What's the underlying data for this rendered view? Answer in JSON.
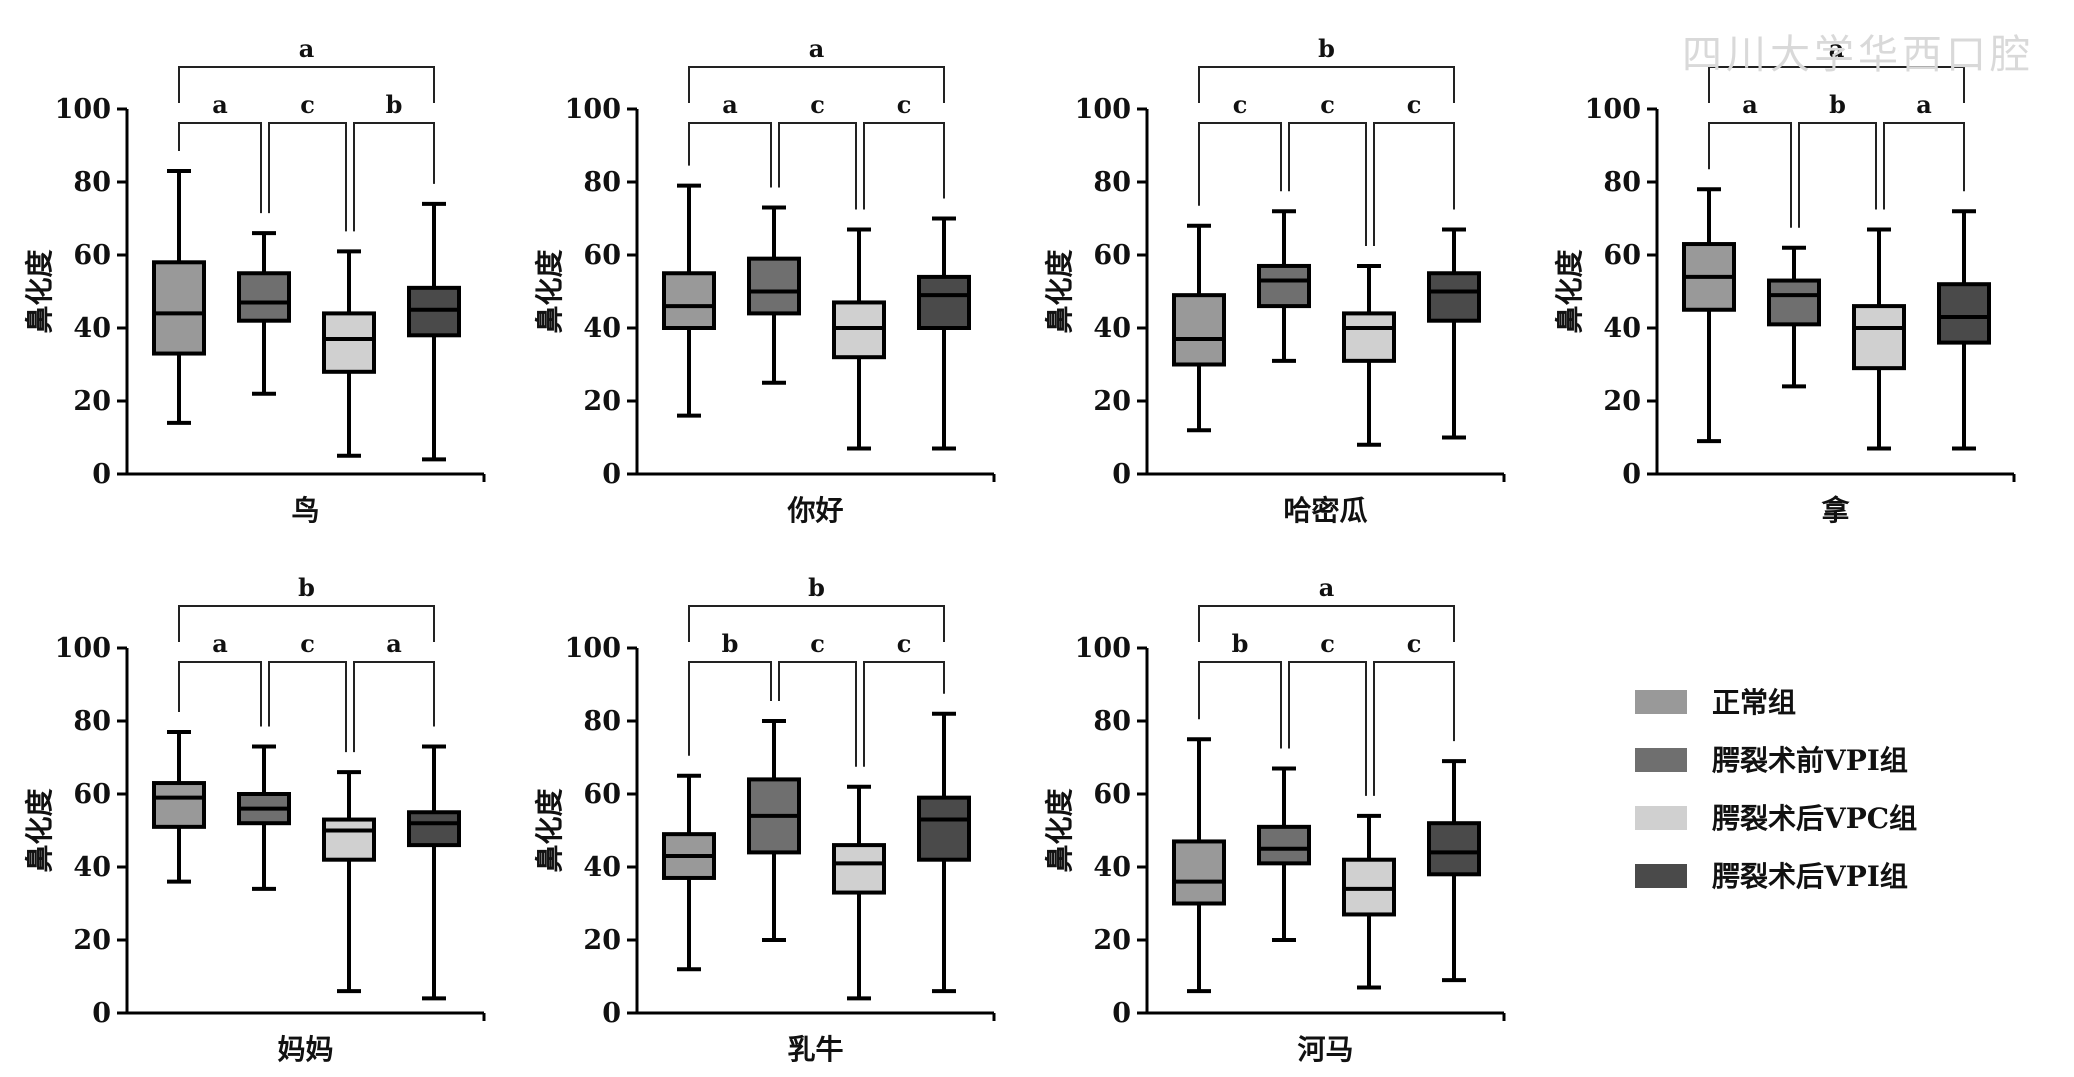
{
  "colors": {
    "groups": [
      "#999999",
      "#6f6f6f",
      "#d0d0d0",
      "#4a4a4a"
    ],
    "stroke": "#000000",
    "bracket": "#222222"
  },
  "watermark": "四川大学华西口腔",
  "legend": {
    "entries": [
      "正常组",
      "腭裂术前VPI组",
      "腭裂术后VPC组",
      "腭裂术后VPI组"
    ]
  },
  "chart_data": [
    {
      "type": "box",
      "xlabel": "鸟",
      "ylabel": "鼻化度",
      "ylim": [
        0,
        100
      ],
      "yticks": [
        0,
        20,
        40,
        60,
        80,
        100
      ],
      "groups": [
        "正常组",
        "腭裂术前VPI组",
        "腭裂术后VPC组",
        "腭裂术后VPI组"
      ],
      "boxes": [
        {
          "min": 14,
          "q1": 33,
          "median": 44,
          "q3": 58,
          "max": 83
        },
        {
          "min": 22,
          "q1": 42,
          "median": 47,
          "q3": 55,
          "max": 66
        },
        {
          "min": 5,
          "q1": 28,
          "median": 37,
          "q3": 44,
          "max": 61
        },
        {
          "min": 4,
          "q1": 38,
          "median": 45,
          "q3": 51,
          "max": 74
        }
      ],
      "significance": {
        "pairs": [
          "a",
          "c",
          "b"
        ],
        "overall": "a"
      }
    },
    {
      "type": "box",
      "xlabel": "你好",
      "ylabel": "鼻化度",
      "ylim": [
        0,
        100
      ],
      "yticks": [
        0,
        20,
        40,
        60,
        80,
        100
      ],
      "groups": [
        "正常组",
        "腭裂术前VPI组",
        "腭裂术后VPC组",
        "腭裂术后VPI组"
      ],
      "boxes": [
        {
          "min": 16,
          "q1": 40,
          "median": 46,
          "q3": 55,
          "max": 79
        },
        {
          "min": 25,
          "q1": 44,
          "median": 50,
          "q3": 59,
          "max": 73
        },
        {
          "min": 7,
          "q1": 32,
          "median": 40,
          "q3": 47,
          "max": 67
        },
        {
          "min": 7,
          "q1": 40,
          "median": 49,
          "q3": 54,
          "max": 70
        }
      ],
      "significance": {
        "pairs": [
          "a",
          "c",
          "c"
        ],
        "overall": "a"
      }
    },
    {
      "type": "box",
      "xlabel": "哈密瓜",
      "ylabel": "鼻化度",
      "ylim": [
        0,
        100
      ],
      "yticks": [
        0,
        20,
        40,
        60,
        80,
        100
      ],
      "groups": [
        "正常组",
        "腭裂术前VPI组",
        "腭裂术后VPC组",
        "腭裂术后VPI组"
      ],
      "boxes": [
        {
          "min": 12,
          "q1": 30,
          "median": 37,
          "q3": 49,
          "max": 68
        },
        {
          "min": 31,
          "q1": 46,
          "median": 53,
          "q3": 57,
          "max": 72
        },
        {
          "min": 8,
          "q1": 31,
          "median": 40,
          "q3": 44,
          "max": 57
        },
        {
          "min": 10,
          "q1": 42,
          "median": 50,
          "q3": 55,
          "max": 67
        }
      ],
      "significance": {
        "pairs": [
          "c",
          "c",
          "c"
        ],
        "overall": "b"
      }
    },
    {
      "type": "box",
      "xlabel": "拿",
      "ylabel": "鼻化度",
      "ylim": [
        0,
        100
      ],
      "yticks": [
        0,
        20,
        40,
        60,
        80,
        100
      ],
      "groups": [
        "正常组",
        "腭裂术前VPI组",
        "腭裂术后VPC组",
        "腭裂术后VPI组"
      ],
      "boxes": [
        {
          "min": 9,
          "q1": 45,
          "median": 54,
          "q3": 63,
          "max": 78
        },
        {
          "min": 24,
          "q1": 41,
          "median": 49,
          "q3": 53,
          "max": 62
        },
        {
          "min": 7,
          "q1": 29,
          "median": 40,
          "q3": 46,
          "max": 67
        },
        {
          "min": 7,
          "q1": 36,
          "median": 43,
          "q3": 52,
          "max": 72
        }
      ],
      "significance": {
        "pairs": [
          "a",
          "b",
          "a"
        ],
        "overall": "a"
      }
    },
    {
      "type": "box",
      "xlabel": "妈妈",
      "ylabel": "鼻化度",
      "ylim": [
        0,
        100
      ],
      "yticks": [
        0,
        20,
        40,
        60,
        80,
        100
      ],
      "groups": [
        "正常组",
        "腭裂术前VPI组",
        "腭裂术后VPC组",
        "腭裂术后VPI组"
      ],
      "boxes": [
        {
          "min": 36,
          "q1": 51,
          "median": 59,
          "q3": 63,
          "max": 77
        },
        {
          "min": 34,
          "q1": 52,
          "median": 56,
          "q3": 60,
          "max": 73
        },
        {
          "min": 6,
          "q1": 42,
          "median": 50,
          "q3": 53,
          "max": 66
        },
        {
          "min": 4,
          "q1": 46,
          "median": 52,
          "q3": 55,
          "max": 73
        }
      ],
      "significance": {
        "pairs": [
          "a",
          "c",
          "a"
        ],
        "overall": "b"
      }
    },
    {
      "type": "box",
      "xlabel": "乳牛",
      "ylabel": "鼻化度",
      "ylim": [
        0,
        100
      ],
      "yticks": [
        0,
        20,
        40,
        60,
        80,
        100
      ],
      "groups": [
        "正常组",
        "腭裂术前VPI组",
        "腭裂术后VPC组",
        "腭裂术后VPI组"
      ],
      "boxes": [
        {
          "min": 12,
          "q1": 37,
          "median": 43,
          "q3": 49,
          "max": 65
        },
        {
          "min": 20,
          "q1": 44,
          "median": 54,
          "q3": 64,
          "max": 80
        },
        {
          "min": 4,
          "q1": 33,
          "median": 41,
          "q3": 46,
          "max": 62
        },
        {
          "min": 6,
          "q1": 42,
          "median": 53,
          "q3": 59,
          "max": 82
        }
      ],
      "significance": {
        "pairs": [
          "b",
          "c",
          "c"
        ],
        "overall": "b"
      }
    },
    {
      "type": "box",
      "xlabel": "河马",
      "ylabel": "鼻化度",
      "ylim": [
        0,
        100
      ],
      "yticks": [
        0,
        20,
        40,
        60,
        80,
        100
      ],
      "groups": [
        "正常组",
        "腭裂术前VPI组",
        "腭裂术后VPC组",
        "腭裂术后VPI组"
      ],
      "boxes": [
        {
          "min": 6,
          "q1": 30,
          "median": 36,
          "q3": 47,
          "max": 75
        },
        {
          "min": 20,
          "q1": 41,
          "median": 45,
          "q3": 51,
          "max": 67
        },
        {
          "min": 7,
          "q1": 27,
          "median": 34,
          "q3": 42,
          "max": 54
        },
        {
          "min": 9,
          "q1": 38,
          "median": 44,
          "q3": 52,
          "max": 69
        }
      ],
      "significance": {
        "pairs": [
          "b",
          "c",
          "c"
        ],
        "overall": "a"
      }
    }
  ]
}
